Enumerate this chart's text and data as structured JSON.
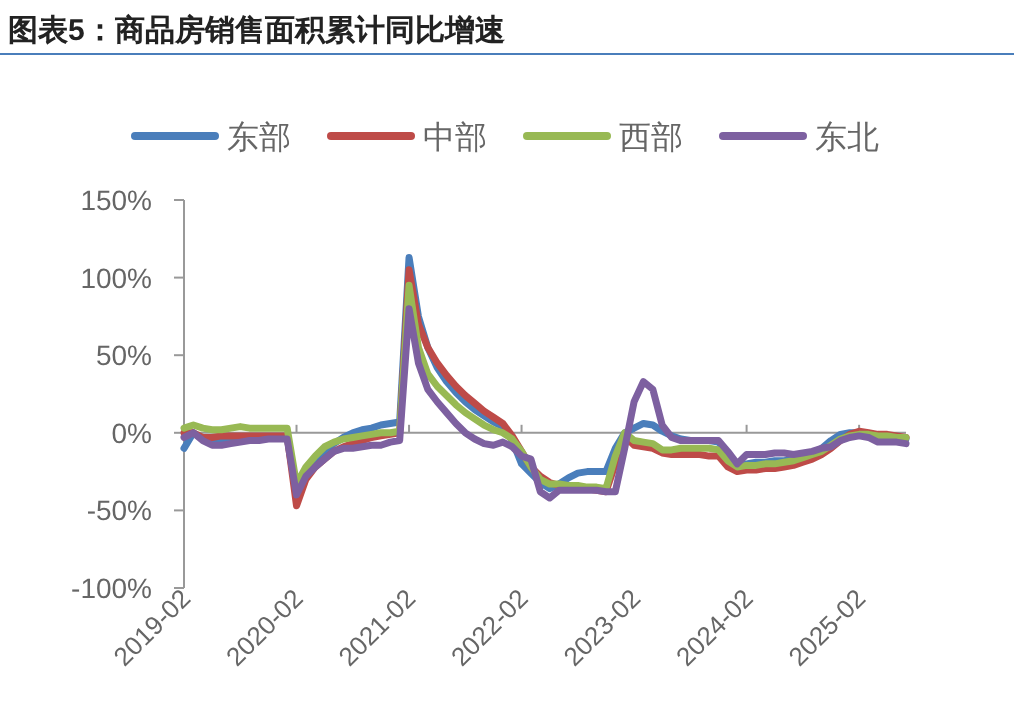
{
  "chart_data": {
    "type": "line",
    "title": "图表5：商品房销售面积累计同比增速",
    "x": [
      "2019-02",
      "2019-03",
      "2019-04",
      "2019-05",
      "2019-06",
      "2019-07",
      "2019-08",
      "2019-09",
      "2019-10",
      "2019-11",
      "2019-12",
      "2020-01",
      "2020-02",
      "2020-03",
      "2020-04",
      "2020-05",
      "2020-06",
      "2020-07",
      "2020-08",
      "2020-09",
      "2020-10",
      "2020-11",
      "2020-12",
      "2021-01",
      "2021-02",
      "2021-03",
      "2021-04",
      "2021-05",
      "2021-06",
      "2021-07",
      "2021-08",
      "2021-09",
      "2021-10",
      "2021-11",
      "2021-12",
      "2022-01",
      "2022-02",
      "2022-03",
      "2022-04",
      "2022-05",
      "2022-06",
      "2022-07",
      "2022-08",
      "2022-09",
      "2022-10",
      "2022-11",
      "2022-12",
      "2023-01",
      "2023-02",
      "2023-03",
      "2023-04",
      "2023-05",
      "2023-06",
      "2023-07",
      "2023-08",
      "2023-09",
      "2023-10",
      "2023-11",
      "2023-12",
      "2024-01",
      "2024-02",
      "2024-03",
      "2024-04",
      "2024-05",
      "2024-06",
      "2024-07",
      "2024-08",
      "2024-09",
      "2024-10",
      "2024-11",
      "2024-12",
      "2025-01",
      "2025-02",
      "2025-03",
      "2025-04",
      "2025-05",
      "2025-06",
      "2025-07"
    ],
    "series": [
      {
        "name": "东部",
        "color": "#4a7ebb",
        "values": [
          -10,
          0,
          -4,
          -5,
          -5,
          -4,
          -4,
          -3,
          -3,
          -3,
          -3,
          -3,
          -38,
          -25,
          -18,
          -12,
          -7,
          -3,
          0,
          2,
          3,
          5,
          6,
          7,
          113,
          75,
          55,
          42,
          33,
          26,
          20,
          15,
          11,
          7,
          4,
          -5,
          -20,
          -26,
          -32,
          -36,
          -33,
          -29,
          -26,
          -25,
          -25,
          -25,
          -10,
          0,
          3,
          6,
          5,
          1,
          -2,
          -4,
          -5,
          -5,
          -5,
          -6,
          -14,
          -21,
          -20,
          -19,
          -19,
          -18,
          -18,
          -17,
          -15,
          -13,
          -10,
          -5,
          -1,
          0,
          0,
          -2,
          -3,
          -3,
          -3,
          -4
        ]
      },
      {
        "name": "中部",
        "color": "#be4b48",
        "values": [
          0,
          0,
          -3,
          -3,
          -2,
          -2,
          -2,
          -2,
          -2,
          -2,
          -2,
          -2,
          -47,
          -30,
          -22,
          -17,
          -12,
          -9,
          -7,
          -5,
          -3,
          -2,
          -1,
          0,
          105,
          70,
          55,
          45,
          37,
          30,
          24,
          19,
          14,
          10,
          6,
          -2,
          -12,
          -22,
          -28,
          -32,
          -34,
          -35,
          -35,
          -36,
          -37,
          -38,
          -20,
          -2,
          -8,
          -9,
          -10,
          -13,
          -14,
          -14,
          -14,
          -14,
          -15,
          -15,
          -22,
          -25,
          -24,
          -24,
          -23,
          -23,
          -22,
          -21,
          -19,
          -17,
          -14,
          -10,
          -5,
          -1,
          1,
          0,
          -1,
          -1,
          -2,
          -3
        ]
      },
      {
        "name": "西部",
        "color": "#98b954",
        "values": [
          3,
          5,
          3,
          2,
          2,
          3,
          4,
          3,
          3,
          3,
          3,
          3,
          -33,
          -22,
          -15,
          -9,
          -6,
          -4,
          -3,
          -2,
          -1,
          0,
          0,
          1,
          95,
          55,
          38,
          30,
          24,
          18,
          13,
          9,
          5,
          2,
          0,
          -4,
          -12,
          -22,
          -30,
          -33,
          -33,
          -34,
          -34,
          -35,
          -35,
          -36,
          -15,
          0,
          -5,
          -6,
          -7,
          -11,
          -11,
          -10,
          -10,
          -10,
          -10,
          -11,
          -18,
          -22,
          -21,
          -21,
          -20,
          -20,
          -19,
          -18,
          -16,
          -14,
          -12,
          -8,
          -4,
          -2,
          -1,
          -1,
          -2,
          -2,
          -3,
          -3
        ]
      },
      {
        "name": "东北",
        "color": "#7d60a0",
        "values": [
          -3,
          0,
          -5,
          -8,
          -8,
          -7,
          -6,
          -5,
          -5,
          -4,
          -4,
          -4,
          -40,
          -28,
          -22,
          -17,
          -12,
          -10,
          -10,
          -9,
          -8,
          -8,
          -6,
          -5,
          80,
          45,
          28,
          20,
          13,
          6,
          0,
          -4,
          -7,
          -8,
          -6,
          -9,
          -15,
          -17,
          -38,
          -42,
          -37,
          -37,
          -37,
          -37,
          -37,
          -38,
          -38,
          -10,
          20,
          33,
          28,
          5,
          -3,
          -5,
          -5,
          -5,
          -5,
          -5,
          -12,
          -20,
          -14,
          -14,
          -14,
          -13,
          -13,
          -14,
          -13,
          -12,
          -10,
          -9,
          -5,
          -3,
          -2,
          -3,
          -6,
          -6,
          -6,
          -7
        ]
      }
    ],
    "xlim": [
      "2019-02",
      "2025-07"
    ],
    "xticks": [
      {
        "value": "2019-02",
        "label": "2019-02"
      },
      {
        "value": "2020-02",
        "label": "2020-02"
      },
      {
        "value": "2021-02",
        "label": "2021-02"
      },
      {
        "value": "2022-02",
        "label": "2022-02"
      },
      {
        "value": "2023-02",
        "label": "2023-02"
      },
      {
        "value": "2024-02",
        "label": "2024-02"
      },
      {
        "value": "2025-02",
        "label": "2025-02"
      }
    ],
    "ylim": [
      -100,
      150
    ],
    "yticks": [
      {
        "value": -100,
        "label": "-100%"
      },
      {
        "value": -50,
        "label": "-50%"
      },
      {
        "value": 0,
        "label": "0%"
      },
      {
        "value": 50,
        "label": "50%"
      },
      {
        "value": 100,
        "label": "100%"
      },
      {
        "value": 150,
        "label": "150%"
      }
    ],
    "legend": "top",
    "marker": "none",
    "line_style": "solid"
  }
}
